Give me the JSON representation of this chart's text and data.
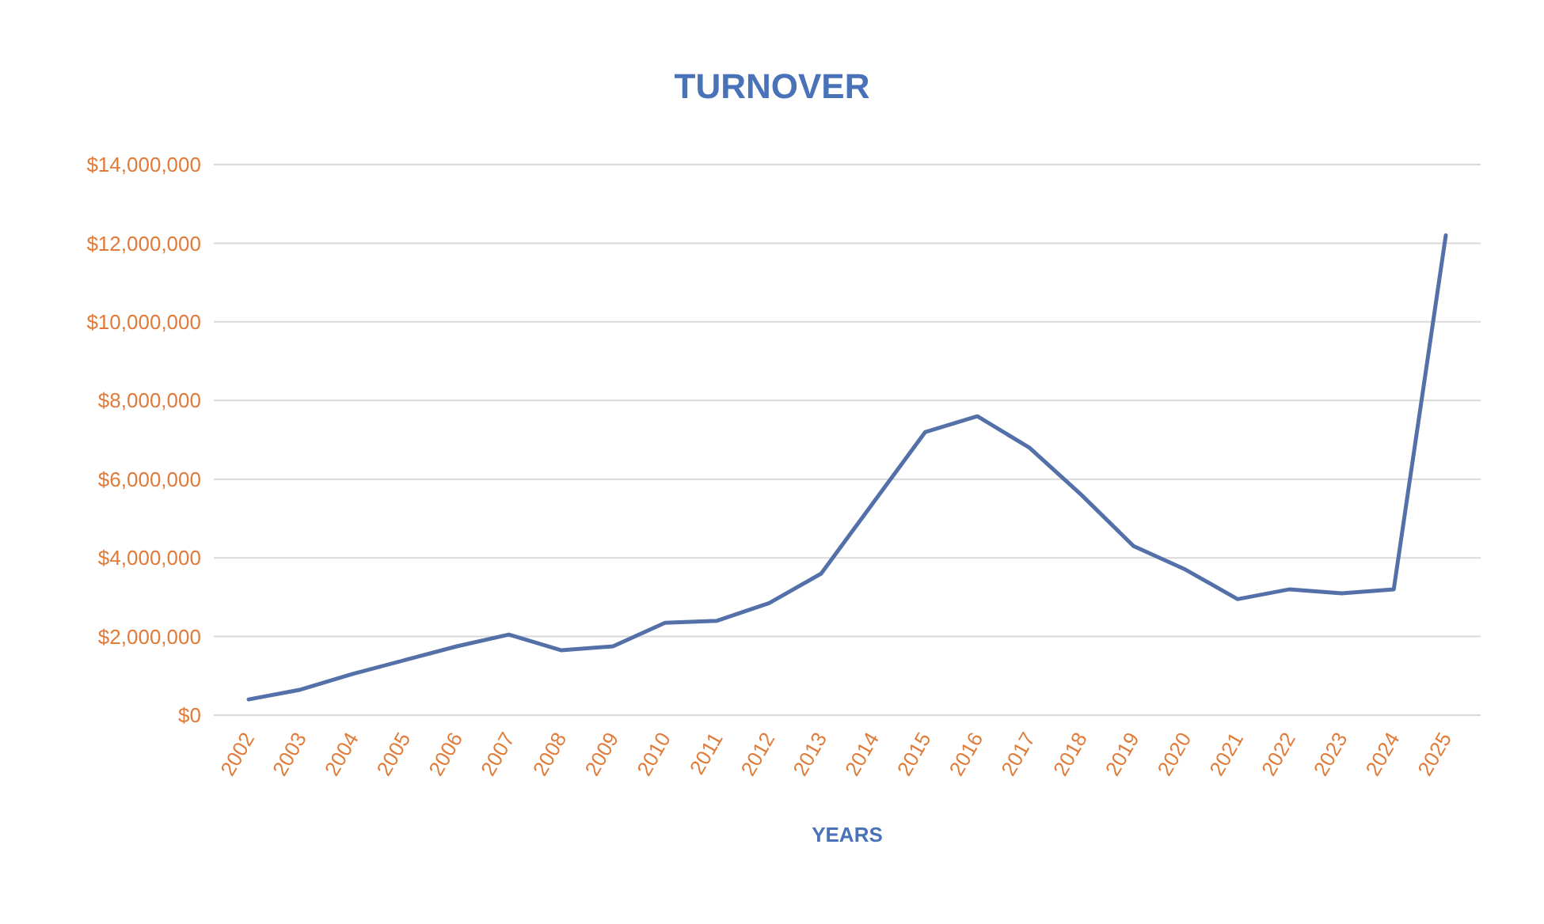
{
  "chart_data": {
    "type": "line",
    "title": "TURNOVER",
    "xlabel": "YEARS",
    "categories": [
      "2002",
      "2003",
      "2004",
      "2005",
      "2006",
      "2007",
      "2008",
      "2009",
      "2010",
      "2011",
      "2012",
      "2013",
      "2014",
      "2015",
      "2016",
      "2017",
      "2018",
      "2019",
      "2020",
      "2021",
      "2022",
      "2023",
      "2024",
      "2025"
    ],
    "series": [
      {
        "color": "#5470a8",
        "values": [
          400000,
          650000,
          1050000,
          1400000,
          1750000,
          2050000,
          1650000,
          1750000,
          2350000,
          2400000,
          2850000,
          3600000,
          5400000,
          7200000,
          7600000,
          6800000,
          5600000,
          4300000,
          3700000,
          2950000,
          3200000,
          3100000,
          3200000,
          12200000
        ]
      }
    ],
    "ylim": [
      0,
      14000000
    ],
    "yticks": [
      {
        "value": 0,
        "label": "$0"
      },
      {
        "value": 2000000,
        "label": "$2,000,000"
      },
      {
        "value": 4000000,
        "label": "$4,000,000"
      },
      {
        "value": 6000000,
        "label": "$6,000,000"
      },
      {
        "value": 8000000,
        "label": "$8,000,000"
      },
      {
        "value": 10000000,
        "label": "$10,000,000"
      },
      {
        "value": 12000000,
        "label": "$12,000,000"
      },
      {
        "value": 14000000,
        "label": "$14,000,000"
      }
    ],
    "grid": "y",
    "marker": "none",
    "line_style": "solid"
  }
}
